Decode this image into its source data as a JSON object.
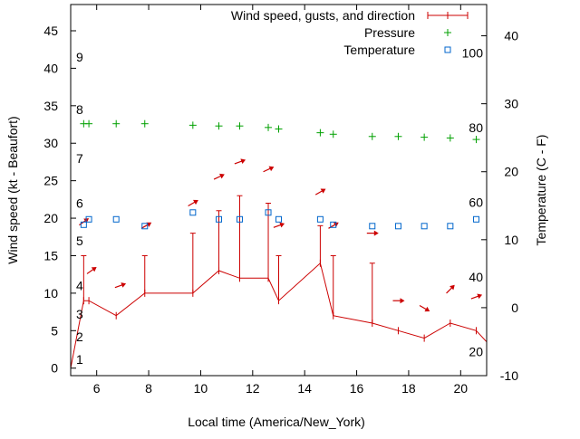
{
  "chart_data": {
    "type": "line",
    "xlabel": "Local time (America/New_York)",
    "ylabel": "Wind speed (kt - Beaufort)",
    "y2label": "Temperature (C - F)",
    "xlim": [
      5,
      21
    ],
    "ylim": [
      -1,
      48.5
    ],
    "y2lim": [
      -10,
      44.6
    ],
    "xticks": [
      6,
      8,
      10,
      12,
      14,
      16,
      18,
      20
    ],
    "yticks": [
      0,
      5,
      10,
      15,
      20,
      25,
      30,
      35,
      40,
      45
    ],
    "y2ticks": [
      -10,
      0,
      10,
      20,
      30,
      40
    ],
    "beaufort_labels": [
      {
        "text": "1",
        "y": 1.2
      },
      {
        "text": "2",
        "y": 4.2
      },
      {
        "text": "3",
        "y": 7.2
      },
      {
        "text": "4",
        "y": 11.0
      },
      {
        "text": "5",
        "y": 17.0
      },
      {
        "text": "6",
        "y": 22.0
      },
      {
        "text": "7",
        "y": 28.0
      },
      {
        "text": "8",
        "y": 34.5
      },
      {
        "text": "9",
        "y": 41.5
      }
    ],
    "fahrenheit_labels": [
      {
        "text": "20",
        "y": -6.5
      },
      {
        "text": "40",
        "y": 4.5
      },
      {
        "text": "60",
        "y": 15.5
      },
      {
        "text": "80",
        "y": 26.5
      },
      {
        "text": "100",
        "y": 37.5
      }
    ],
    "legend_position": "top-right",
    "colors": {
      "wind": "#cc0000",
      "pressure": "#00a000",
      "temperature": "#0066cc",
      "frame": "#000000"
    },
    "series": [
      {
        "name": "Wind speed, gusts, and direction",
        "style": "line-with-gust-bars",
        "x": [
          4.6,
          5.5,
          5.7,
          6.75,
          7.85,
          9.7,
          10.7,
          11.5,
          12.6,
          13.0,
          14.6,
          15.1,
          16.6,
          17.6,
          18.6,
          19.6,
          20.6,
          21.0
        ],
        "values": [
          0,
          9,
          9,
          7,
          10,
          10,
          13,
          12,
          12,
          9,
          14,
          7,
          6,
          5,
          4,
          6,
          5,
          3.5
        ],
        "gusts": [
          null,
          15,
          null,
          null,
          15,
          18,
          21,
          23,
          22,
          15,
          19,
          15,
          14,
          null,
          null,
          null,
          null,
          null
        ],
        "direction_arrows": [
          {
            "x": 5.5,
            "y": 19.5,
            "angle": -35
          },
          {
            "x": 5.8,
            "y": 13.0,
            "angle": -35
          },
          {
            "x": 6.9,
            "y": 11.0,
            "angle": -20
          },
          {
            "x": 7.9,
            "y": 19.0,
            "angle": -30
          },
          {
            "x": 9.7,
            "y": 22.0,
            "angle": -30
          },
          {
            "x": 10.7,
            "y": 25.5,
            "angle": -25
          },
          {
            "x": 11.5,
            "y": 27.5,
            "angle": -20
          },
          {
            "x": 12.6,
            "y": 26.5,
            "angle": -25
          },
          {
            "x": 13.0,
            "y": 19.0,
            "angle": -20
          },
          {
            "x": 14.6,
            "y": 23.5,
            "angle": -30
          },
          {
            "x": 15.1,
            "y": 19.0,
            "angle": -30
          },
          {
            "x": 16.6,
            "y": 18.0,
            "angle": 0
          },
          {
            "x": 17.6,
            "y": 9.0,
            "angle": 0
          },
          {
            "x": 18.6,
            "y": 8.0,
            "angle": 30
          },
          {
            "x": 19.6,
            "y": 10.5,
            "angle": -45
          },
          {
            "x": 20.6,
            "y": 9.5,
            "angle": -20
          }
        ]
      },
      {
        "name": "Pressure",
        "style": "markers-plus",
        "x": [
          5.5,
          5.7,
          6.75,
          7.85,
          9.7,
          10.7,
          11.5,
          12.6,
          13.0,
          14.6,
          15.1,
          16.6,
          17.6,
          18.6,
          19.6,
          20.6
        ],
        "values": [
          32.6,
          32.6,
          32.6,
          32.6,
          32.4,
          32.3,
          32.3,
          32.1,
          31.9,
          31.4,
          31.2,
          30.9,
          30.9,
          30.8,
          30.7,
          30.5
        ]
      },
      {
        "name": "Temperature",
        "style": "markers-open-square",
        "axis": "right",
        "x": [
          5.5,
          5.7,
          6.75,
          7.85,
          9.7,
          10.7,
          11.5,
          12.6,
          13.0,
          14.6,
          15.1,
          16.6,
          17.6,
          18.6,
          19.6,
          20.6
        ],
        "values": [
          12.2,
          13.0,
          13.0,
          12.0,
          14.0,
          13.0,
          13.0,
          14.0,
          13.0,
          13.0,
          12.2,
          12.0,
          12.0,
          12.0,
          12.0,
          13.0
        ]
      }
    ]
  }
}
